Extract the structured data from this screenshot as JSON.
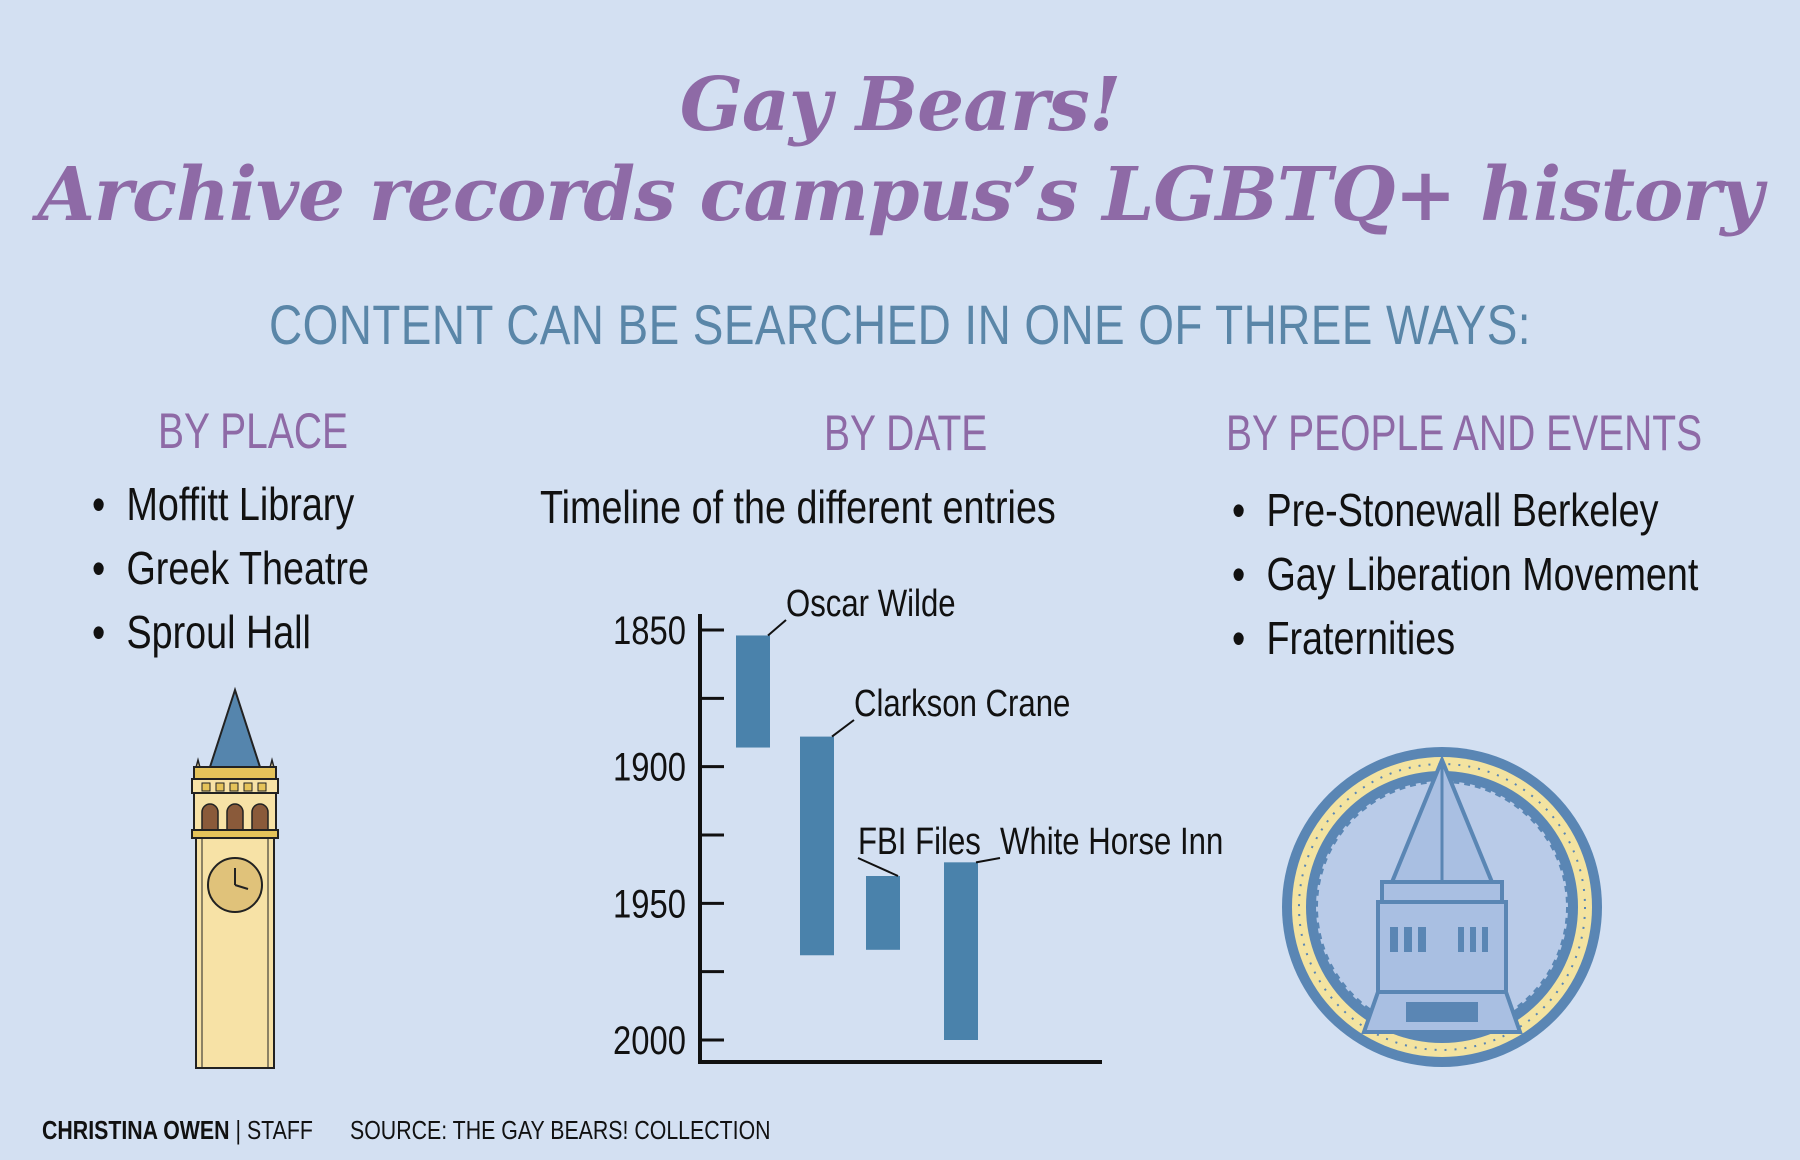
{
  "title": {
    "line1": "Gay Bears!",
    "line2": "Archive records campus’s LGBTQ+ history"
  },
  "subtitle": "CONTENT CAN BE SEARCHED IN ONE OF THREE WAYS:",
  "by_place": {
    "heading": "BY PLACE",
    "items": [
      "Moffitt Library",
      "Greek Theatre",
      "Sproul Hall"
    ],
    "illustration_icon": "clock-tower-icon"
  },
  "by_date": {
    "heading": "BY DATE",
    "subheading": "Timeline of the different entries"
  },
  "by_people": {
    "heading": "BY PEOPLE AND EVENTS",
    "items": [
      "Pre-Stonewall Berkeley",
      "Gay Liberation Movement",
      "Fraternities"
    ],
    "illustration_icon": "campanile-seal-icon"
  },
  "credits": {
    "author": "CHRISTINA OWEN",
    "separator": "|",
    "role": "STAFF",
    "source": "SOURCE: THE GAY BEARS! COLLECTION"
  },
  "colors": {
    "background": "#d3e0f2",
    "title": "#8e6aa6",
    "subtitle": "#5a86a8",
    "bar": "#4a82ab"
  },
  "chart_data": {
    "type": "bar",
    "orientation": "vertical-timeline",
    "y_axis_reversed": true,
    "ylim": [
      1850,
      2000
    ],
    "y_ticks": [
      1850,
      1900,
      1950,
      2000
    ],
    "y_minor_ticks": [
      1875,
      1925,
      1975
    ],
    "categories": [
      "Oscar Wilde",
      "Clarkson Crane",
      "FBI Files",
      "White Horse Inn"
    ],
    "series": [
      {
        "values": [
          {
            "label": "Oscar Wilde",
            "start": 1852,
            "end": 1893
          },
          {
            "label": "Clarkson Crane",
            "start": 1889,
            "end": 1969
          },
          {
            "label": "FBI Files",
            "start": 1940,
            "end": 1967
          },
          {
            "label": "White Horse Inn",
            "start": 1935,
            "end": 2000
          }
        ]
      }
    ],
    "title": "Timeline of the different entries",
    "xlabel": "",
    "ylabel": "",
    "grid": false
  }
}
